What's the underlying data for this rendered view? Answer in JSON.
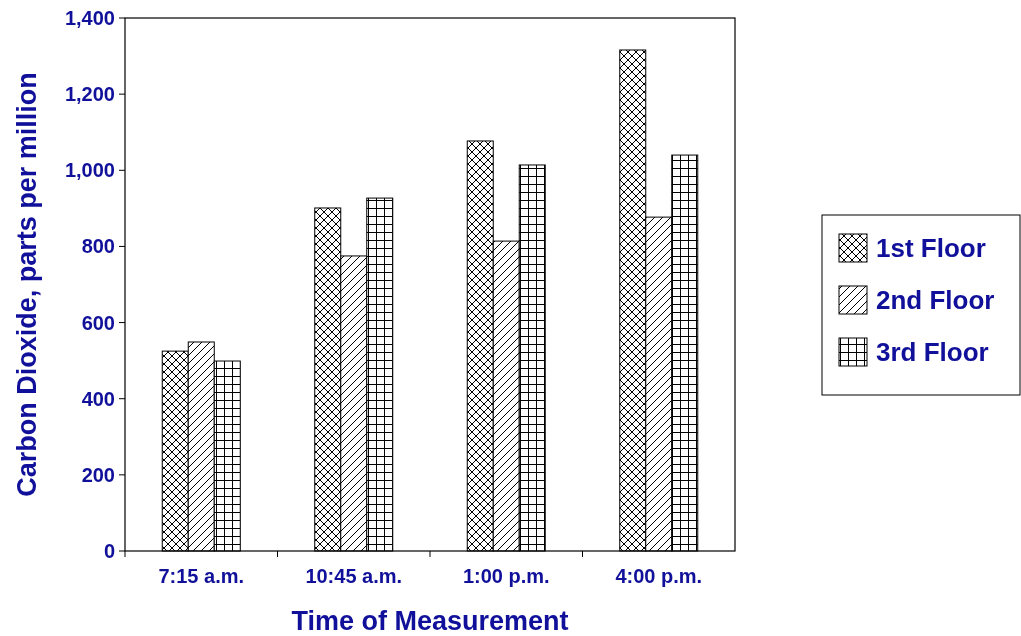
{
  "chart_data": {
    "type": "bar",
    "xlabel": "Time of Measurement",
    "ylabel": "Carbon Dioxide, parts per million",
    "categories": [
      "7:15 a.m.",
      "10:45 a.m.",
      "1:00 p.m.",
      "4:00 p.m."
    ],
    "series": [
      {
        "name": "1st Floor",
        "color": "#000000",
        "values": [
          525,
          901,
          1077,
          1316
        ]
      },
      {
        "name": "2nd Floor",
        "color": "#000000",
        "values": [
          549,
          775,
          814,
          877
        ]
      },
      {
        "name": "3rd Floor",
        "color": "#000000",
        "values": [
          499,
          927,
          1014,
          1040
        ]
      }
    ],
    "ylim": [
      0,
      1400
    ],
    "yticks": [
      0,
      200,
      400,
      600,
      800,
      {
        "value": 1000,
        "label": "1,000"
      },
      {
        "value": 1200,
        "label": "1,200"
      },
      {
        "value": 1400,
        "label": "1,400"
      }
    ],
    "grid": false,
    "legend": "right"
  }
}
